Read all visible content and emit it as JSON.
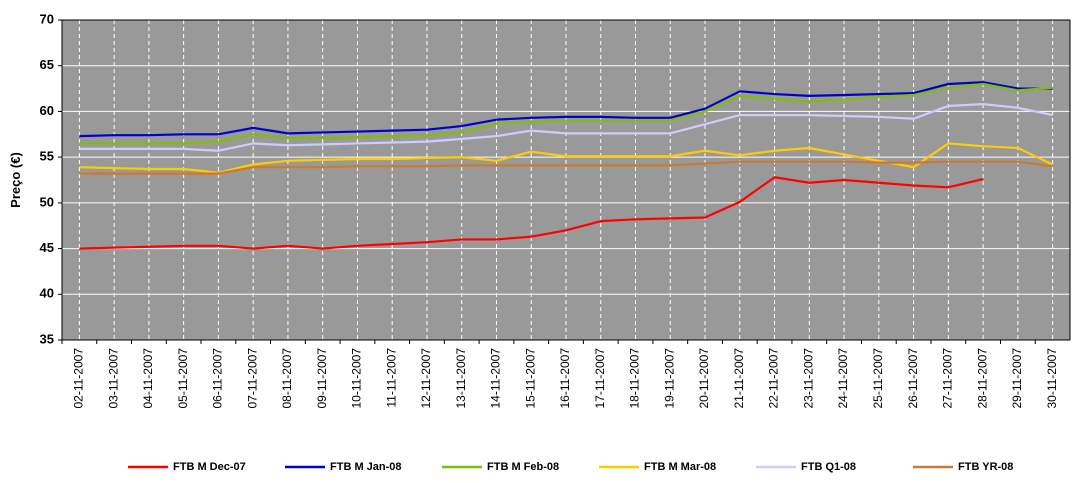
{
  "chart_data": {
    "type": "line",
    "y_label": "Preço (€)",
    "categories": [
      "02-11-2007",
      "03-11-2007",
      "04-11-2007",
      "05-11-2007",
      "06-11-2007",
      "07-11-2007",
      "08-11-2007",
      "09-11-2007",
      "10-11-2007",
      "11-11-2007",
      "12-11-2007",
      "13-11-2007",
      "14-11-2007",
      "15-11-2007",
      "16-11-2007",
      "17-11-2007",
      "18-11-2007",
      "19-11-2007",
      "20-11-2007",
      "21-11-2007",
      "22-11-2007",
      "23-11-2007",
      "24-11-2007",
      "25-11-2007",
      "26-11-2007",
      "27-11-2007",
      "28-11-2007",
      "29-11-2007",
      "30-11-2007"
    ],
    "series": [
      {
        "name": "FTB M Dec-07",
        "color": "#ff0000",
        "values": [
          45.0,
          45.1,
          45.2,
          45.3,
          45.3,
          45.0,
          45.3,
          45.0,
          45.3,
          45.5,
          45.7,
          46.0,
          46.0,
          46.3,
          47.0,
          48.0,
          48.2,
          48.3,
          48.4,
          50.1,
          52.8,
          52.2,
          52.5,
          52.2,
          51.9,
          51.7,
          52.6,
          null,
          null
        ]
      },
      {
        "name": "FTB M Jan-08",
        "color": "#0000cc",
        "values": [
          57.3,
          57.4,
          57.4,
          57.5,
          57.5,
          58.2,
          57.6,
          57.7,
          57.8,
          57.9,
          58.0,
          58.4,
          59.1,
          59.3,
          59.4,
          59.4,
          59.3,
          59.3,
          60.3,
          62.2,
          61.9,
          61.7,
          61.8,
          61.9,
          62.0,
          63.0,
          63.2,
          62.5,
          62.5
        ]
      },
      {
        "name": "FTB M Feb-08",
        "color": "#7fbf00",
        "values": [
          56.5,
          56.5,
          56.5,
          56.5,
          56.7,
          57.5,
          57.1,
          57.1,
          57.2,
          57.3,
          57.4,
          57.7,
          58.7,
          58.9,
          59.0,
          59.0,
          59.0,
          59.0,
          60.0,
          61.7,
          61.4,
          61.1,
          61.3,
          61.6,
          61.8,
          62.6,
          63.0,
          62.3,
          62.6
        ]
      },
      {
        "name": "FTB M Mar-08",
        "color": "#ffcc00",
        "values": [
          53.9,
          53.8,
          53.7,
          53.7,
          53.3,
          54.2,
          54.6,
          54.7,
          54.8,
          54.8,
          54.9,
          55.0,
          54.6,
          55.6,
          55.1,
          55.1,
          55.1,
          55.1,
          55.7,
          55.2,
          55.7,
          56.0,
          55.3,
          54.6,
          53.9,
          56.5,
          56.2,
          56.0,
          54.2
        ]
      },
      {
        "name": "FTB Q1-08",
        "color": "#ccccff",
        "values": [
          55.9,
          55.9,
          55.9,
          55.9,
          55.7,
          56.5,
          56.3,
          56.4,
          56.5,
          56.6,
          56.7,
          57.0,
          57.3,
          57.9,
          57.6,
          57.6,
          57.6,
          57.6,
          58.6,
          59.6,
          59.6,
          59.6,
          59.5,
          59.4,
          59.2,
          60.6,
          60.8,
          60.4,
          59.6
        ]
      },
      {
        "name": "FTB YR-08",
        "color": "#cc7a33",
        "values": [
          53.2,
          53.2,
          53.2,
          53.2,
          53.2,
          53.9,
          53.9,
          53.9,
          54.0,
          54.0,
          54.0,
          54.1,
          54.1,
          54.1,
          54.1,
          54.1,
          54.1,
          54.1,
          54.3,
          54.5,
          54.5,
          54.5,
          54.5,
          54.4,
          54.4,
          54.5,
          54.5,
          54.5,
          54.0
        ]
      }
    ],
    "ylim": [
      35,
      70
    ],
    "yticks": [
      35,
      40,
      45,
      50,
      55,
      60,
      65,
      70
    ],
    "grid": true,
    "legend": "bottom",
    "plot_background": "#999999"
  }
}
